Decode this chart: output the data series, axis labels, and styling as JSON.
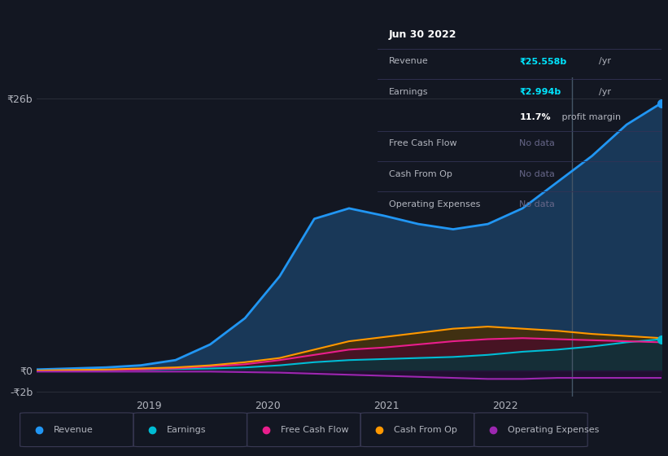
{
  "background_color": "#131722",
  "plot_bg_color": "#131722",
  "grid_color": "#2a2e39",
  "text_color": "#b2b5be",
  "title_color": "#ffffff",
  "ylim": [
    -2.5,
    28
  ],
  "yticks": [
    -2,
    0,
    26
  ],
  "xtick_labels": [
    "2019",
    "2020",
    "2021",
    "2022"
  ],
  "series": {
    "Revenue": {
      "color": "#2196f3",
      "fill_color": "#1a3a5c",
      "values": [
        0.1,
        0.2,
        0.3,
        0.5,
        1.0,
        2.5,
        5.0,
        9.0,
        14.5,
        15.5,
        14.8,
        14.0,
        13.5,
        14.0,
        15.5,
        18.0,
        20.5,
        23.5,
        25.558
      ]
    },
    "Earnings": {
      "color": "#00bcd4",
      "fill_color": "#004a50",
      "values": [
        0.0,
        0.02,
        0.05,
        0.1,
        0.15,
        0.2,
        0.3,
        0.5,
        0.8,
        1.0,
        1.1,
        1.2,
        1.3,
        1.5,
        1.8,
        2.0,
        2.3,
        2.7,
        2.994
      ]
    },
    "FreeCashFlow": {
      "color": "#e91e8c",
      "fill_color": "#5a0a3a",
      "values": [
        0.0,
        0.02,
        0.05,
        0.1,
        0.2,
        0.4,
        0.6,
        1.0,
        1.5,
        2.0,
        2.2,
        2.5,
        2.8,
        3.0,
        3.1,
        3.0,
        2.9,
        2.8,
        2.7
      ]
    },
    "CashFromOp": {
      "color": "#ff9800",
      "fill_color": "#5a3a00",
      "values": [
        0.0,
        0.05,
        0.1,
        0.2,
        0.3,
        0.5,
        0.8,
        1.2,
        2.0,
        2.8,
        3.2,
        3.6,
        4.0,
        4.2,
        4.0,
        3.8,
        3.5,
        3.3,
        3.1
      ]
    },
    "OperatingExpenses": {
      "color": "#9c27b0",
      "fill_color": "#3a0a5a",
      "values": [
        -0.1,
        -0.1,
        -0.1,
        -0.1,
        -0.1,
        -0.1,
        -0.15,
        -0.2,
        -0.3,
        -0.4,
        -0.5,
        -0.6,
        -0.7,
        -0.8,
        -0.8,
        -0.7,
        -0.7,
        -0.7,
        -0.7
      ]
    }
  },
  "legend": [
    {
      "label": "Revenue",
      "color": "#2196f3"
    },
    {
      "label": "Earnings",
      "color": "#00bcd4"
    },
    {
      "label": "Free Cash Flow",
      "color": "#e91e8c"
    },
    {
      "label": "Cash From Op",
      "color": "#ff9800"
    },
    {
      "label": "Operating Expenses",
      "color": "#9c27b0"
    }
  ],
  "tooltip": {
    "date": "Jun 30 2022",
    "revenue_val": "₹25.558b",
    "revenue_per": "/yr",
    "earnings_val": "₹2.994b",
    "earnings_per": "/yr",
    "margin": "11.7%",
    "margin_label": "profit margin",
    "fcf": "No data",
    "cashop": "No data",
    "opex": "No data"
  }
}
